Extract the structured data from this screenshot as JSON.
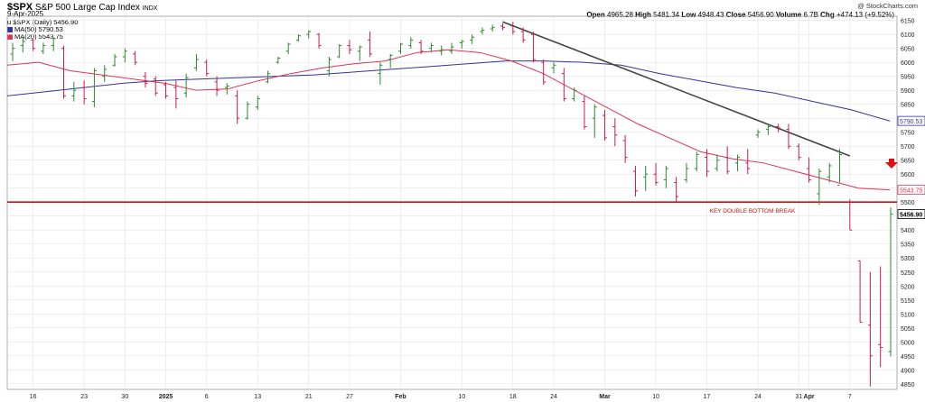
{
  "header": {
    "symbol": "$SPX",
    "name": "S&P 500 Large Cap Index",
    "exchange": "INDX",
    "date": "9-Apr-2025",
    "credit": "@ StockCharts.com",
    "legend_price": "$SPX (Daily) 5456.90",
    "legend_ma50": "MA(50) 5790.53",
    "legend_ma20": "MA(20) 5543.75",
    "open_label": "Open",
    "open": "4965.28",
    "high_label": "High",
    "high": "5481.34",
    "low_label": "Low",
    "low": "4948.43",
    "close_label": "Close",
    "close": "5456.90",
    "volume_label": "Volume",
    "volume": "6.7B",
    "chg_label": "Chg",
    "chg": "+474.13 (+9.52%)",
    "prefix_u": "u"
  },
  "chart_data": {
    "type": "ohlc",
    "x_tick_labels": [
      "16",
      "23",
      "30",
      "2025",
      "6",
      "13",
      "21",
      "27",
      "Feb",
      "10",
      "18",
      "24",
      "Mar",
      "10",
      "17",
      "24",
      "31",
      "Apr",
      "7"
    ],
    "y_ticks": [
      4850,
      4900,
      4950,
      5000,
      5050,
      5100,
      5150,
      5200,
      5250,
      5300,
      5350,
      5400,
      5450,
      5500,
      5550,
      5600,
      5650,
      5700,
      5750,
      5800,
      5850,
      5900,
      5950,
      6000,
      6050,
      6100,
      6150
    ],
    "ylim": [
      4830,
      6165
    ],
    "grid": true,
    "bars": [
      {
        "o": 6030,
        "h": 6070,
        "l": 6005,
        "c": 6050
      },
      {
        "o": 6060,
        "h": 6090,
        "l": 6035,
        "c": 6075
      },
      {
        "o": 6080,
        "h": 6085,
        "l": 6040,
        "c": 6050
      },
      {
        "o": 6040,
        "h": 6070,
        "l": 6030,
        "c": 6060
      },
      {
        "o": 6060,
        "h": 6090,
        "l": 6040,
        "c": 6085
      },
      {
        "o": 6050,
        "h": 6060,
        "l": 5870,
        "c": 5880
      },
      {
        "o": 5880,
        "h": 5930,
        "l": 5860,
        "c": 5900
      },
      {
        "o": 5910,
        "h": 5935,
        "l": 5850,
        "c": 5870
      },
      {
        "o": 5860,
        "h": 5980,
        "l": 5840,
        "c": 5970
      },
      {
        "o": 5950,
        "h": 5990,
        "l": 5930,
        "c": 5975
      },
      {
        "o": 5990,
        "h": 6030,
        "l": 5985,
        "c": 6020
      },
      {
        "o": 6020,
        "h": 6050,
        "l": 6000,
        "c": 6040
      },
      {
        "o": 6030,
        "h": 6040,
        "l": 5990,
        "c": 6000
      },
      {
        "o": 5950,
        "h": 5965,
        "l": 5910,
        "c": 5925
      },
      {
        "o": 5940,
        "h": 5950,
        "l": 5880,
        "c": 5890
      },
      {
        "o": 5920,
        "h": 5930,
        "l": 5870,
        "c": 5880
      },
      {
        "o": 5910,
        "h": 5935,
        "l": 5835,
        "c": 5870
      },
      {
        "o": 5890,
        "h": 5960,
        "l": 5875,
        "c": 5945
      },
      {
        "o": 5980,
        "h": 6030,
        "l": 5970,
        "c": 6010
      },
      {
        "o": 6000,
        "h": 6010,
        "l": 5950,
        "c": 5960
      },
      {
        "o": 5930,
        "h": 5950,
        "l": 5880,
        "c": 5900
      },
      {
        "o": 5910,
        "h": 5925,
        "l": 5885,
        "c": 5915
      },
      {
        "o": 5880,
        "h": 5900,
        "l": 5780,
        "c": 5800
      },
      {
        "o": 5800,
        "h": 5860,
        "l": 5795,
        "c": 5850
      },
      {
        "o": 5840,
        "h": 5880,
        "l": 5830,
        "c": 5870
      },
      {
        "o": 5930,
        "h": 5970,
        "l": 5925,
        "c": 5960
      },
      {
        "o": 6000,
        "h": 6020,
        "l": 5995,
        "c": 6015
      },
      {
        "o": 6040,
        "h": 6070,
        "l": 6030,
        "c": 6065
      },
      {
        "o": 6080,
        "h": 6100,
        "l": 6075,
        "c": 6095
      },
      {
        "o": 6100,
        "h": 6115,
        "l": 6085,
        "c": 6110
      },
      {
        "o": 6100,
        "h": 6105,
        "l": 6050,
        "c": 6060
      },
      {
        "o": 5970,
        "h": 6020,
        "l": 5950,
        "c": 6010
      },
      {
        "o": 6020,
        "h": 6065,
        "l": 6015,
        "c": 6060
      },
      {
        "o": 6060,
        "h": 6080,
        "l": 6030,
        "c": 6045
      },
      {
        "o": 6040,
        "h": 6060,
        "l": 6005,
        "c": 6055
      },
      {
        "o": 6080,
        "h": 6110,
        "l": 6020,
        "c": 6030
      },
      {
        "o": 5960,
        "h": 6000,
        "l": 5920,
        "c": 5990
      },
      {
        "o": 6010,
        "h": 6030,
        "l": 5980,
        "c": 6025
      },
      {
        "o": 6040,
        "h": 6070,
        "l": 6030,
        "c": 6065
      },
      {
        "o": 6060,
        "h": 6090,
        "l": 6050,
        "c": 6080
      },
      {
        "o": 6070,
        "h": 6080,
        "l": 6030,
        "c": 6040
      },
      {
        "o": 6050,
        "h": 6070,
        "l": 6035,
        "c": 6060
      },
      {
        "o": 6040,
        "h": 6060,
        "l": 6025,
        "c": 6045
      },
      {
        "o": 6040,
        "h": 6070,
        "l": 6030,
        "c": 6055
      },
      {
        "o": 6070,
        "h": 6080,
        "l": 6050,
        "c": 6075
      },
      {
        "o": 6080,
        "h": 6100,
        "l": 6065,
        "c": 6090
      },
      {
        "o": 6110,
        "h": 6125,
        "l": 6100,
        "c": 6115
      },
      {
        "o": 6120,
        "h": 6135,
        "l": 6110,
        "c": 6125
      },
      {
        "o": 6130,
        "h": 6140,
        "l": 6115,
        "c": 6125
      },
      {
        "o": 6130,
        "h": 6145,
        "l": 6100,
        "c": 6110
      },
      {
        "o": 6110,
        "h": 6125,
        "l": 6070,
        "c": 6080
      },
      {
        "o": 6100,
        "h": 6110,
        "l": 6000,
        "c": 6010
      },
      {
        "o": 6000,
        "h": 6010,
        "l": 5920,
        "c": 5930
      },
      {
        "o": 5980,
        "h": 6000,
        "l": 5960,
        "c": 5990
      },
      {
        "o": 5960,
        "h": 5980,
        "l": 5860,
        "c": 5870
      },
      {
        "o": 5870,
        "h": 5910,
        "l": 5860,
        "c": 5900
      },
      {
        "o": 5860,
        "h": 5880,
        "l": 5760,
        "c": 5770
      },
      {
        "o": 5800,
        "h": 5850,
        "l": 5730,
        "c": 5840
      },
      {
        "o": 5810,
        "h": 5830,
        "l": 5720,
        "c": 5730
      },
      {
        "o": 5770,
        "h": 5800,
        "l": 5700,
        "c": 5740
      },
      {
        "o": 5720,
        "h": 5740,
        "l": 5640,
        "c": 5660
      },
      {
        "o": 5610,
        "h": 5630,
        "l": 5520,
        "c": 5540
      },
      {
        "o": 5590,
        "h": 5630,
        "l": 5540,
        "c": 5600
      },
      {
        "o": 5600,
        "h": 5640,
        "l": 5560,
        "c": 5570
      },
      {
        "o": 5580,
        "h": 5630,
        "l": 5550,
        "c": 5620
      },
      {
        "o": 5570,
        "h": 5590,
        "l": 5500,
        "c": 5520
      },
      {
        "o": 5580,
        "h": 5640,
        "l": 5570,
        "c": 5620
      },
      {
        "o": 5620,
        "h": 5680,
        "l": 5610,
        "c": 5670
      },
      {
        "o": 5660,
        "h": 5690,
        "l": 5590,
        "c": 5610
      },
      {
        "o": 5620,
        "h": 5670,
        "l": 5610,
        "c": 5650
      },
      {
        "o": 5660,
        "h": 5700,
        "l": 5600,
        "c": 5610
      },
      {
        "o": 5640,
        "h": 5670,
        "l": 5610,
        "c": 5660
      },
      {
        "o": 5640,
        "h": 5690,
        "l": 5600,
        "c": 5620
      },
      {
        "o": 5740,
        "h": 5760,
        "l": 5730,
        "c": 5750
      },
      {
        "o": 5760,
        "h": 5780,
        "l": 5740,
        "c": 5770
      },
      {
        "o": 5770,
        "h": 5780,
        "l": 5750,
        "c": 5765
      },
      {
        "o": 5760,
        "h": 5780,
        "l": 5690,
        "c": 5700
      },
      {
        "o": 5700,
        "h": 5710,
        "l": 5650,
        "c": 5660
      },
      {
        "o": 5620,
        "h": 5660,
        "l": 5570,
        "c": 5580
      },
      {
        "o": 5530,
        "h": 5620,
        "l": 5490,
        "c": 5610
      },
      {
        "o": 5590,
        "h": 5640,
        "l": 5570,
        "c": 5630
      },
      {
        "o": 5560,
        "h": 5690,
        "l": 5570,
        "c": 5670
      },
      {
        "o": 5500,
        "h": 5510,
        "l": 5400,
        "c": 5400
      },
      {
        "o": 5290,
        "h": 5290,
        "l": 5070,
        "c": 5070
      },
      {
        "o": 5060,
        "h": 5250,
        "l": 4840,
        "c": 4950
      },
      {
        "o": 4990,
        "h": 5270,
        "l": 4910,
        "c": 4980
      },
      {
        "o": 4965,
        "h": 5481,
        "l": 4948,
        "c": 5457
      }
    ],
    "ma50": [
      5880,
      5895,
      5910,
      5925,
      5935,
      5940,
      5945,
      5950,
      5955,
      5965,
      5975,
      5985,
      5995,
      6005,
      6005,
      6000,
      5990,
      5960,
      5935,
      5910,
      5890,
      5860,
      5830,
      5790
    ],
    "ma20": [
      5990,
      6000,
      5970,
      5955,
      5940,
      5925,
      5900,
      5905,
      5935,
      5960,
      5980,
      5995,
      6005,
      6035,
      6045,
      6035,
      6005,
      5960,
      5900,
      5840,
      5780,
      5730,
      5680,
      5655,
      5640,
      5610,
      5580,
      5550,
      5544
    ],
    "trendline": {
      "x": [
        48,
        82
      ],
      "y": [
        6145,
        5665
      ]
    },
    "support_level": 5500,
    "annotation": "KEY DOUBLE BOTTOM BREAK",
    "price_labels": {
      "ma50": "5790.53",
      "ma20": "5543.75",
      "close": "5456.90"
    },
    "colors": {
      "up": "#2a8a2a",
      "down": "#cc1a4a",
      "ma50": "#333399",
      "ma20": "#dd3355",
      "support": "#cc1111",
      "trend": "#444444",
      "grid": "#e3e3e3"
    }
  }
}
